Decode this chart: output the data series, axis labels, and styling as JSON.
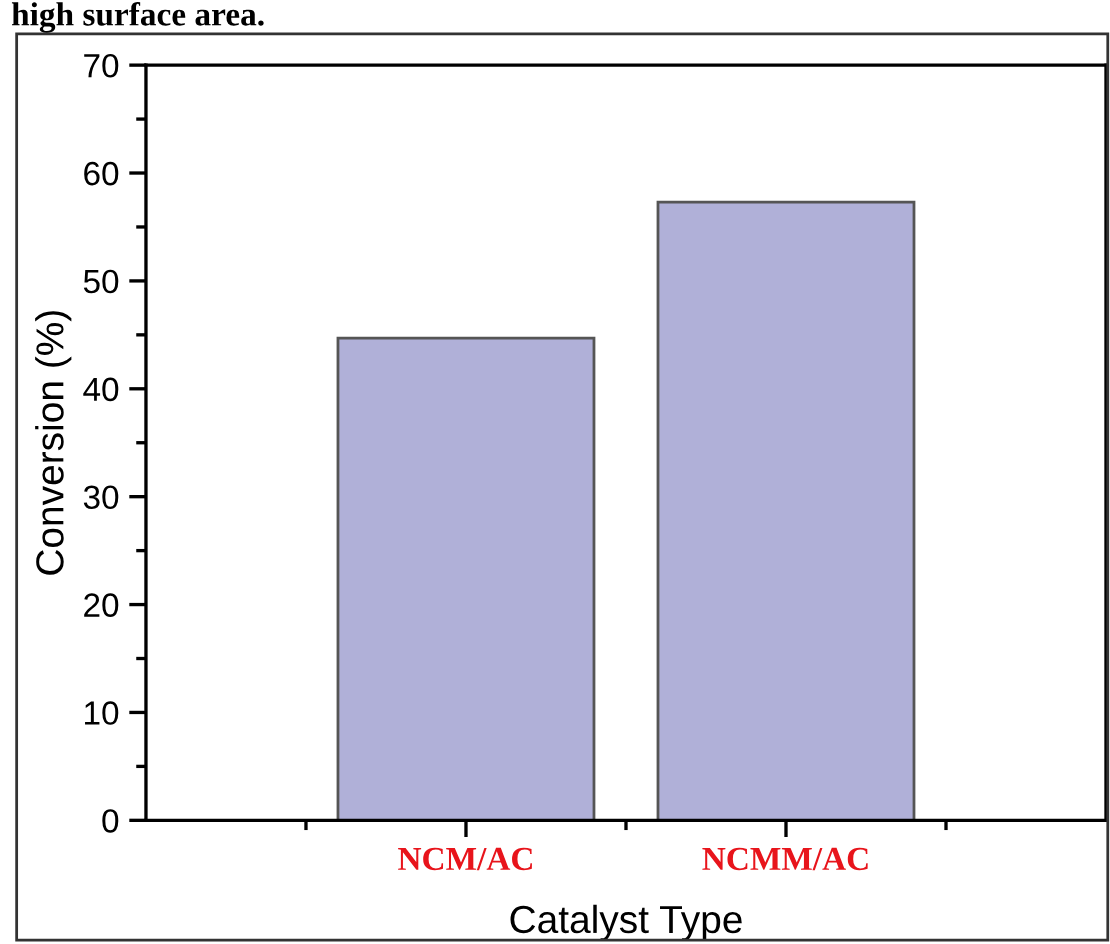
{
  "chart_data": {
    "type": "bar",
    "annotations": [
      "high surface area."
    ],
    "xlabel": "Catalyst Type",
    "ylabel": "Conversion (%)",
    "categories": [
      "NCM/AC",
      "NCMM/AC"
    ],
    "values": [
      44.7,
      57.3
    ],
    "colors": [
      "#b0b0d8",
      "#b0b0d8"
    ],
    "ylim": [
      0,
      70
    ],
    "yticks": [
      0,
      10,
      20,
      30,
      40,
      50,
      60,
      70
    ],
    "grid": false
  }
}
